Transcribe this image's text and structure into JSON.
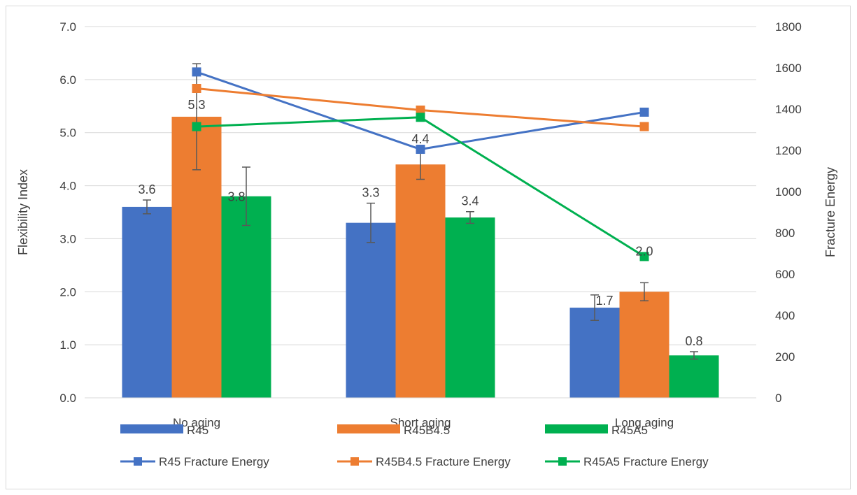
{
  "chart_data": {
    "type": "bar",
    "categories": [
      "No aging",
      "Short aging",
      "Long aging"
    ],
    "series": [
      {
        "name": "R45",
        "color": "#4472c4",
        "values": [
          3.6,
          3.3,
          1.7
        ],
        "labels": [
          "3.6",
          "3.3",
          "1.7"
        ],
        "error": [
          0.13,
          0.37,
          0.24
        ]
      },
      {
        "name": "R45B4.5",
        "color": "#ed7d31",
        "values": [
          5.3,
          4.4,
          2.0
        ],
        "labels": [
          "5.3",
          "4.4",
          "2.0"
        ],
        "error": [
          1.0,
          0.28,
          0.17
        ]
      },
      {
        "name": "R45A5",
        "color": "#00b050",
        "values": [
          3.8,
          3.4,
          0.8
        ],
        "labels": [
          "3.8",
          "3.4",
          "0.8"
        ],
        "error": [
          0.55,
          0.11,
          0.07
        ]
      }
    ],
    "line_series": [
      {
        "name": "R45 Fracture Energy",
        "color": "#4472c4",
        "values": [
          1580,
          1205,
          1385
        ]
      },
      {
        "name": "R45B4.5 Fracture Energy",
        "color": "#ed7d31",
        "values": [
          1500,
          1395,
          1315
        ]
      },
      {
        "name": "R45A5 Fracture Energy",
        "color": "#00b050",
        "values": [
          1315,
          1360,
          685
        ]
      }
    ],
    "ylabel": "Flexibility Index",
    "y2label": "Fracture Energy",
    "ylim": [
      0,
      7
    ],
    "y2lim": [
      0,
      1800
    ],
    "yticks": [
      "0.0",
      "1.0",
      "2.0",
      "3.0",
      "4.0",
      "5.0",
      "6.0",
      "7.0"
    ],
    "y2ticks": [
      "0",
      "200",
      "400",
      "600",
      "800",
      "1000",
      "1200",
      "1400",
      "1600",
      "1800"
    ],
    "grid": true,
    "legend_position": "bottom"
  }
}
